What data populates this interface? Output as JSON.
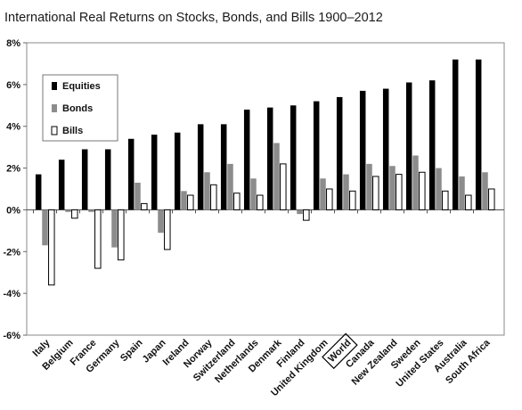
{
  "chart_data": {
    "type": "bar",
    "title": "International Real Returns on Stocks, Bonds, and Bills 1900–2012",
    "xlabel": "",
    "ylabel": "",
    "ylim": [
      -6,
      8
    ],
    "yticks": [
      "-6%",
      "-4%",
      "-2%",
      "0%",
      "2%",
      "4%",
      "6%",
      "8%"
    ],
    "grid": false,
    "legend_position": "top-left",
    "highlighted_category": "World",
    "categories": [
      "Italy",
      "Belgium",
      "France",
      "Germany",
      "Spain",
      "Japan",
      "Ireland",
      "Norway",
      "Switzerland",
      "Netherlands",
      "Denmark",
      "Finland",
      "United Kingdom",
      "World",
      "Canada",
      "New Zealand",
      "Sweden",
      "United States",
      "Australia",
      "South Africa"
    ],
    "series": [
      {
        "name": "Equities",
        "color": "#000000",
        "values": [
          1.7,
          2.4,
          2.9,
          2.9,
          3.4,
          3.6,
          3.7,
          4.1,
          4.1,
          4.8,
          4.9,
          5.0,
          5.2,
          5.4,
          5.7,
          5.8,
          6.1,
          6.2,
          7.2,
          7.2
        ]
      },
      {
        "name": "Bonds",
        "color": "#8c8c8c",
        "values": [
          -1.7,
          -0.1,
          -0.1,
          -1.8,
          1.3,
          -1.1,
          0.9,
          1.8,
          2.2,
          1.5,
          3.2,
          -0.2,
          1.5,
          1.7,
          2.2,
          2.1,
          2.6,
          2.0,
          1.6,
          1.8
        ]
      },
      {
        "name": "Bills",
        "color": "#ffffff",
        "values": [
          -3.6,
          -0.4,
          -2.8,
          -2.4,
          0.3,
          -1.9,
          0.7,
          1.2,
          0.8,
          0.7,
          2.2,
          -0.5,
          1.0,
          0.9,
          1.6,
          1.7,
          1.8,
          0.9,
          0.7,
          1.0
        ]
      }
    ]
  }
}
